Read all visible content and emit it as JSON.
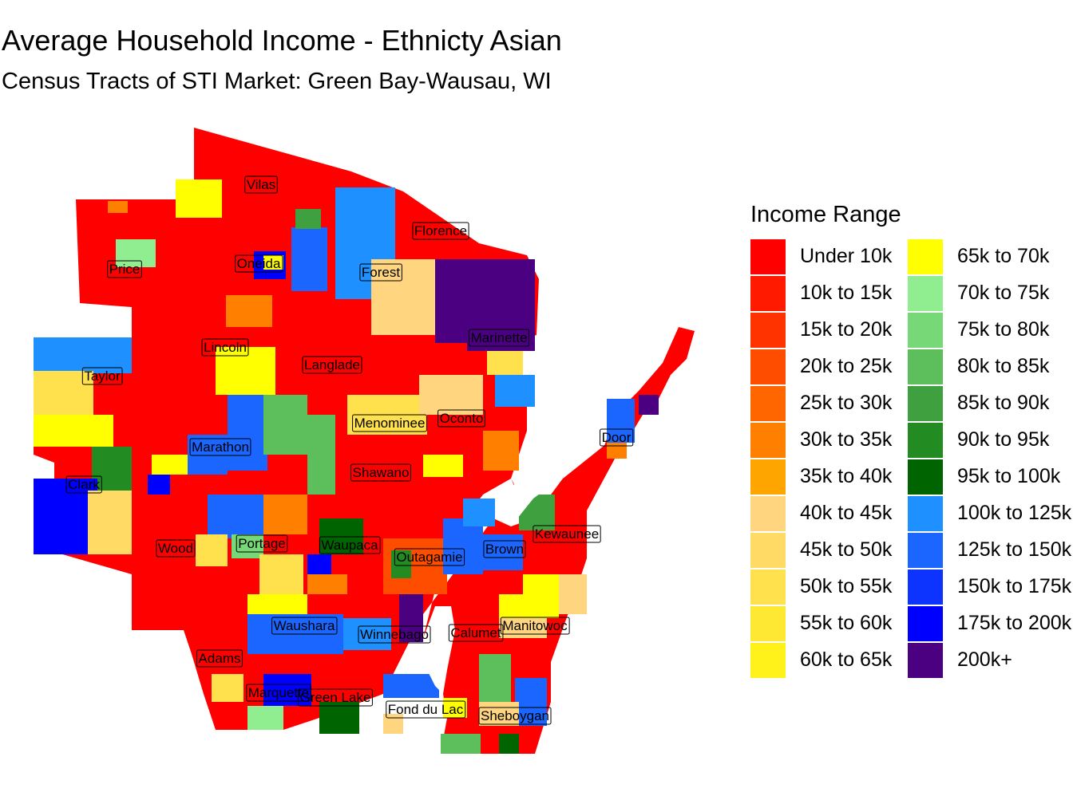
{
  "title": "Average Household Income - Ethnicty Asian",
  "subtitle": "Census Tracts of STI Market: Green Bay-Wausau, WI",
  "legend": {
    "title": "Income Range",
    "items": [
      {
        "label": "Under 10k",
        "color": "#ff0000"
      },
      {
        "label": "10k to 15k",
        "color": "#ff1a00"
      },
      {
        "label": "15k to 20k",
        "color": "#ff3300"
      },
      {
        "label": "20k to 25k",
        "color": "#ff4d00"
      },
      {
        "label": "25k to 30k",
        "color": "#ff6600"
      },
      {
        "label": "30k to 35k",
        "color": "#ff8000"
      },
      {
        "label": "35k to 40k",
        "color": "#ffa500"
      },
      {
        "label": "40k to 45k",
        "color": "#ffd580"
      },
      {
        "label": "45k to 50k",
        "color": "#ffdb66"
      },
      {
        "label": "50k to 55k",
        "color": "#ffe14d"
      },
      {
        "label": "55k to 60k",
        "color": "#ffe833"
      },
      {
        "label": "60k to 65k",
        "color": "#fff21a"
      },
      {
        "label": "65k to 70k",
        "color": "#ffff00"
      },
      {
        "label": "70k to 75k",
        "color": "#90ee90"
      },
      {
        "label": "75k to 80k",
        "color": "#77d877"
      },
      {
        "label": "80k to 85k",
        "color": "#5cbf5c"
      },
      {
        "label": "85k to 90k",
        "color": "#3fa03f"
      },
      {
        "label": "90k to 95k",
        "color": "#228b22"
      },
      {
        "label": "95k to 100k",
        "color": "#006400"
      },
      {
        "label": "100k to 125k",
        "color": "#1e90ff"
      },
      {
        "label": "125k to 150k",
        "color": "#1a66ff"
      },
      {
        "label": "150k to 175k",
        "color": "#0d33ff"
      },
      {
        "label": "175k to 200k",
        "color": "#0000ff"
      },
      {
        "label": "200k+",
        "color": "#4b0082"
      }
    ]
  },
  "counties": [
    {
      "name": "Vilas"
    },
    {
      "name": "Florence"
    },
    {
      "name": "Price"
    },
    {
      "name": "Oneida"
    },
    {
      "name": "Forest"
    },
    {
      "name": "Marinette"
    },
    {
      "name": "Lincoln"
    },
    {
      "name": "Langlade"
    },
    {
      "name": "Taylor"
    },
    {
      "name": "Menominee"
    },
    {
      "name": "Oconto"
    },
    {
      "name": "Door"
    },
    {
      "name": "Marathon"
    },
    {
      "name": "Shawano"
    },
    {
      "name": "Clark"
    },
    {
      "name": "Kewaunee"
    },
    {
      "name": "Wood"
    },
    {
      "name": "Portage"
    },
    {
      "name": "Waupaca"
    },
    {
      "name": "Outagamie"
    },
    {
      "name": "Brown"
    },
    {
      "name": "Waushara"
    },
    {
      "name": "Winnebago"
    },
    {
      "name": "Calumet"
    },
    {
      "name": "Manitowoc"
    },
    {
      "name": "Adams"
    },
    {
      "name": "Marquette"
    },
    {
      "name": "Green Lake"
    },
    {
      "name": "Fond du Lac"
    },
    {
      "name": "Sheboygan"
    }
  ]
}
